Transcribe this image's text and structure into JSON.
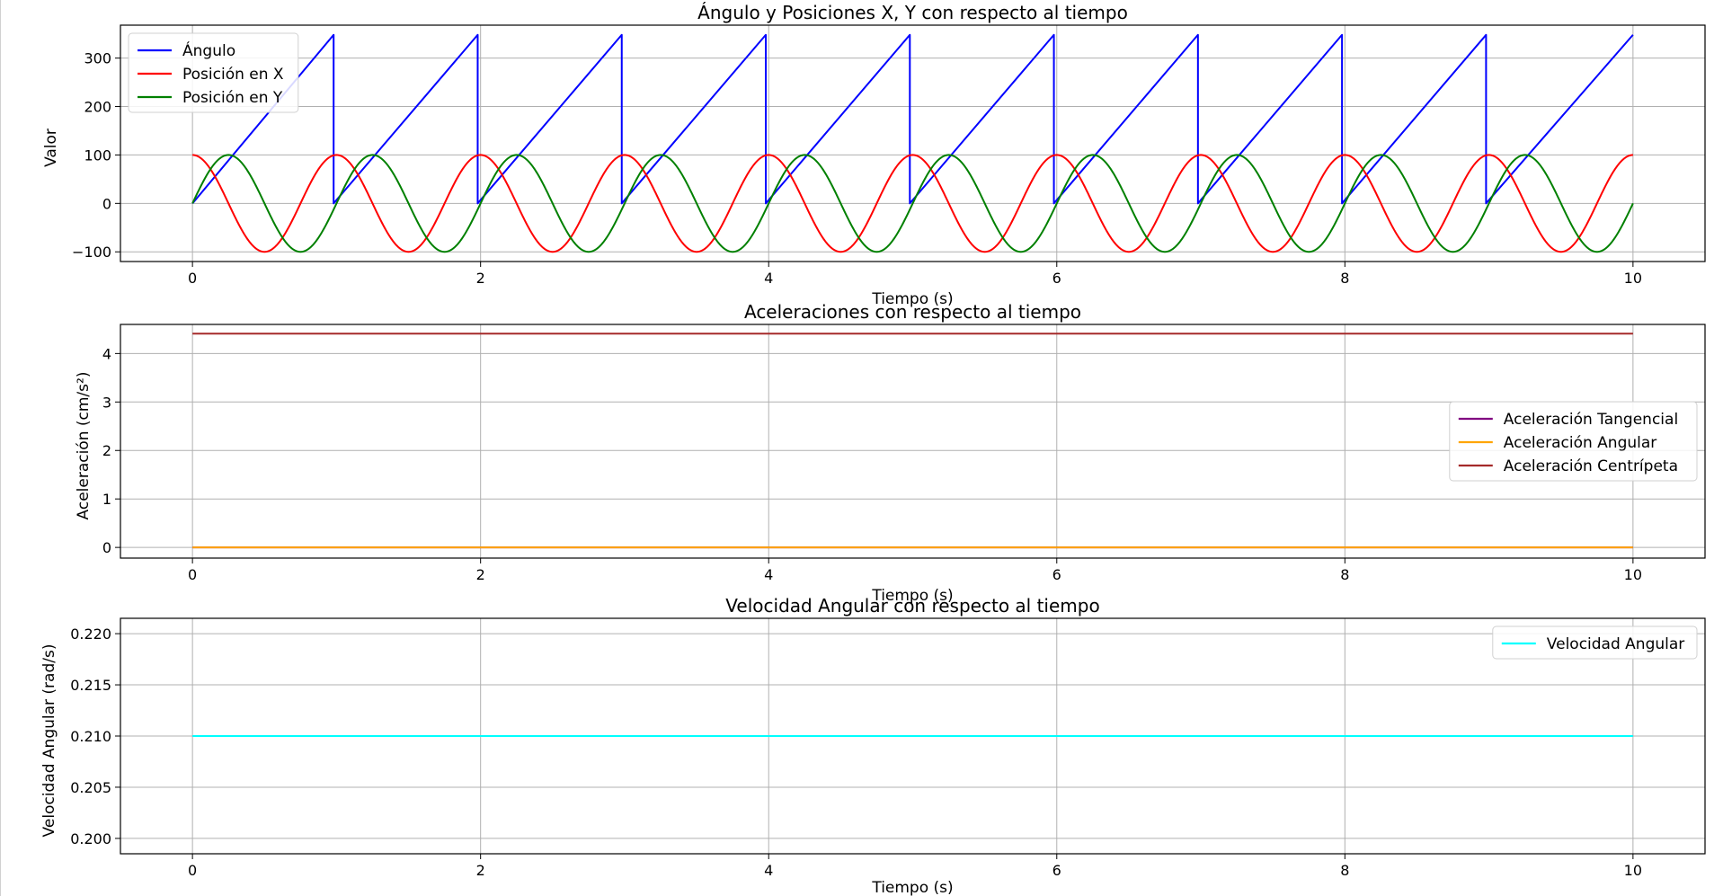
{
  "chart_data": [
    {
      "type": "line",
      "title": "Ángulo y Posiciones X, Y con respecto al tiempo",
      "xlabel": "Tiempo (s)",
      "ylabel": "Valor",
      "xlim": [
        -0.5,
        10.5
      ],
      "ylim": [
        -120,
        368
      ],
      "xticks": [
        0,
        2,
        4,
        6,
        8,
        10
      ],
      "yticks": [
        -100,
        0,
        100,
        200,
        300
      ],
      "xtick_labels": [
        "0",
        "2",
        "4",
        "6",
        "8",
        "10"
      ],
      "ytick_labels": [
        "−100",
        "0",
        "100",
        "200",
        "300"
      ],
      "grid": true,
      "legend_position": "upper-left",
      "series": [
        {
          "name": "Ángulo",
          "color": "#0000ff",
          "x": [
            0,
            0.98,
            0.98,
            1.98,
            1.98,
            2.98,
            2.98,
            3.98,
            3.98,
            4.98,
            4.98,
            5.98,
            5.98,
            6.98,
            6.98,
            7.98,
            7.98,
            8.98,
            8.98,
            10
          ],
          "y": [
            0,
            348,
            0,
            348,
            0,
            348,
            0,
            348,
            0,
            348,
            0,
            348,
            0,
            348,
            0,
            348,
            0,
            348,
            0,
            348
          ]
        },
        {
          "name": "Posición en X",
          "color": "#ff0000",
          "function": "cos",
          "amplitude": 100,
          "period": 1.0,
          "x_range": [
            0,
            10
          ]
        },
        {
          "name": "Posición en Y",
          "color": "#008000",
          "function": "sin",
          "amplitude": 100,
          "period": 1.0,
          "x_range": [
            0,
            10
          ]
        }
      ]
    },
    {
      "type": "line",
      "title": "Aceleraciones con respecto al tiempo",
      "xlabel": "Tiempo (s)",
      "ylabel": "Aceleración (cm/s²)",
      "xlim": [
        -0.5,
        10.5
      ],
      "ylim": [
        -0.22,
        4.6
      ],
      "xticks": [
        0,
        2,
        4,
        6,
        8,
        10
      ],
      "yticks": [
        0,
        1,
        2,
        3,
        4
      ],
      "xtick_labels": [
        "0",
        "2",
        "4",
        "6",
        "8",
        "10"
      ],
      "ytick_labels": [
        "0",
        "1",
        "2",
        "3",
        "4"
      ],
      "grid": true,
      "legend_position": "center-right",
      "series": [
        {
          "name": "Aceleración Tangencial",
          "color": "#800080",
          "x": [
            0,
            10
          ],
          "y": [
            0,
            0
          ]
        },
        {
          "name": "Aceleración Angular",
          "color": "#ffa500",
          "x": [
            0,
            10
          ],
          "y": [
            0,
            0
          ]
        },
        {
          "name": "Aceleración Centrípeta",
          "color": "#a52a2a",
          "x": [
            0,
            10
          ],
          "y": [
            4.41,
            4.41
          ]
        }
      ]
    },
    {
      "type": "line",
      "title": "Velocidad Angular con respecto al tiempo",
      "xlabel": "Tiempo (s)",
      "ylabel": "Velocidad Angular (rad/s)",
      "xlim": [
        -0.5,
        10.5
      ],
      "ylim": [
        0.1985,
        0.2215
      ],
      "xticks": [
        0,
        2,
        4,
        6,
        8,
        10
      ],
      "yticks": [
        0.2,
        0.205,
        0.21,
        0.215,
        0.22
      ],
      "xtick_labels": [
        "0",
        "2",
        "4",
        "6",
        "8",
        "10"
      ],
      "ytick_labels": [
        "0.200",
        "0.205",
        "0.210",
        "0.215",
        "0.220"
      ],
      "grid": true,
      "legend_position": "upper-right",
      "series": [
        {
          "name": "Velocidad Angular",
          "color": "#00ffff",
          "x": [
            0,
            10
          ],
          "y": [
            0.21,
            0.21
          ]
        }
      ]
    }
  ]
}
